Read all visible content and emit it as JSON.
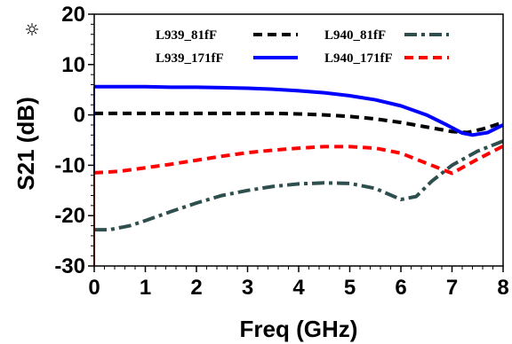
{
  "chart_data": {
    "type": "line",
    "xlabel": "Freq (GHz)",
    "ylabel": "S21 (dB)",
    "xlim": [
      0,
      8
    ],
    "ylim": [
      -30,
      20
    ],
    "xticks": [
      "0",
      "1",
      "2",
      "3",
      "4",
      "5",
      "6",
      "7",
      "8"
    ],
    "yticks": [
      "20",
      "10",
      "0",
      "-10",
      "-20",
      "-30"
    ],
    "grid": false,
    "legend_position": "top",
    "series": [
      {
        "name": "L939_81fF",
        "color": "#000000",
        "style": "dashed",
        "x": [
          0,
          0.5,
          1,
          1.5,
          2,
          2.5,
          3,
          3.5,
          4,
          4.5,
          5,
          5.5,
          6,
          6.5,
          7,
          7.3,
          7.6,
          8
        ],
        "y": [
          0.3,
          0.3,
          0.3,
          0.3,
          0.3,
          0.3,
          0.3,
          0.3,
          0.2,
          0.0,
          -0.3,
          -0.8,
          -1.5,
          -2.4,
          -3.3,
          -3.5,
          -2.8,
          -1.5
        ]
      },
      {
        "name": "L939_171fF",
        "color": "#0000ff",
        "style": "solid",
        "x": [
          0,
          0.5,
          1,
          1.5,
          2,
          2.5,
          3,
          3.5,
          4,
          4.5,
          5,
          5.5,
          6,
          6.5,
          6.9,
          7.2,
          7.4,
          7.7,
          8
        ],
        "y": [
          5.6,
          5.6,
          5.6,
          5.5,
          5.5,
          5.4,
          5.3,
          5.1,
          4.8,
          4.4,
          3.8,
          3.0,
          1.8,
          0.0,
          -2.0,
          -3.6,
          -4.0,
          -3.5,
          -2.0
        ]
      },
      {
        "name": "L940_81fF",
        "color": "#2f4f4f",
        "style": "dashdot",
        "x": [
          0,
          0.3,
          0.7,
          1,
          1.5,
          2,
          2.5,
          3,
          3.5,
          4,
          4.5,
          5,
          5.5,
          6,
          6.3,
          6.6,
          7,
          7.5,
          8
        ],
        "y": [
          -22.8,
          -22.8,
          -22.0,
          -21.0,
          -19.2,
          -17.5,
          -16.0,
          -15.0,
          -14.2,
          -13.7,
          -13.5,
          -13.6,
          -14.6,
          -16.8,
          -16.2,
          -13.2,
          -10.0,
          -7.2,
          -5.2
        ]
      },
      {
        "name": "L940_171fF",
        "color": "#ff0000",
        "style": "dashed",
        "x": [
          0,
          0.5,
          1,
          1.5,
          2,
          2.5,
          3,
          3.5,
          4,
          4.5,
          5,
          5.5,
          6,
          6.5,
          7,
          7.5,
          8
        ],
        "y": [
          -11.5,
          -11.2,
          -10.5,
          -9.8,
          -9.0,
          -8.2,
          -7.5,
          -7.0,
          -6.6,
          -6.3,
          -6.3,
          -6.6,
          -7.6,
          -9.6,
          -11.6,
          -8.8,
          -6.2
        ]
      }
    ]
  }
}
